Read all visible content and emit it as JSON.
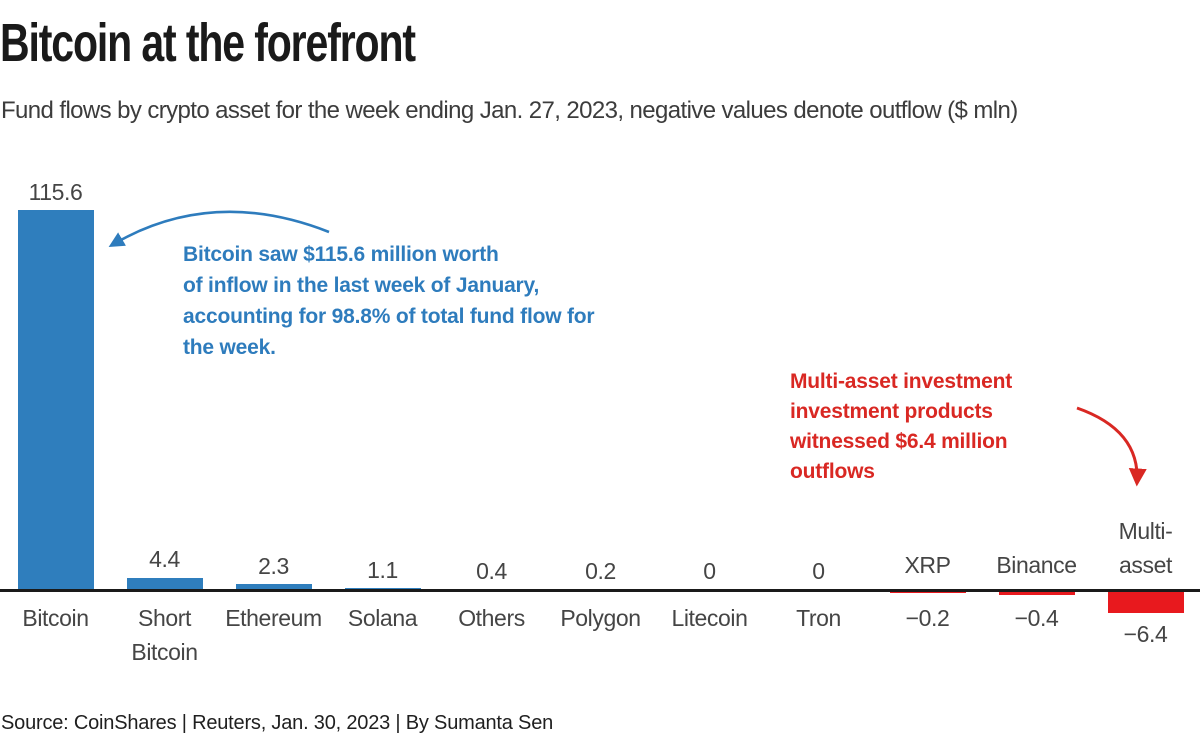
{
  "header": {
    "title": "Bitcoin at the forefront",
    "subtitle": "Fund flows by crypto asset for the week ending Jan. 27, 2023, negative values denote outflow ($ mln)"
  },
  "chart_data": {
    "type": "bar",
    "title": "Bitcoin at the forefront",
    "xlabel": "",
    "ylabel": "$ mln",
    "categories": [
      "Bitcoin",
      "Short Bitcoin",
      "Ethereum",
      "Solana",
      "Others",
      "Polygon",
      "Litecoin",
      "Tron",
      "XRP",
      "Binance",
      "Multi-asset"
    ],
    "values": [
      115.6,
      4.4,
      2.3,
      1.1,
      0.4,
      0.2,
      0,
      0,
      -0.2,
      -0.4,
      -6.4
    ],
    "value_labels": [
      "115.6",
      "4.4",
      "2.3",
      "1.1",
      "0.4",
      "0.2",
      "0",
      "0",
      "−0.2",
      "−0.4",
      "−6.4"
    ],
    "label_lines": [
      [
        "Bitcoin"
      ],
      [
        "Short",
        "Bitcoin"
      ],
      [
        "Ethereum"
      ],
      [
        "Solana"
      ],
      [
        "Others"
      ],
      [
        "Polygon"
      ],
      [
        "Litecoin"
      ],
      [
        "Tron"
      ],
      [
        "XRP"
      ],
      [
        "Binance"
      ],
      [
        "Multi-",
        "asset"
      ]
    ],
    "positive_color": "#2f7ebd",
    "negative_color": "#e8191e",
    "axis_color": "#1a1a1a",
    "label_color": "#454545",
    "grid": false,
    "legend": false,
    "ylim": [
      -6.4,
      115.6
    ]
  },
  "annotations": {
    "bitcoin": {
      "color": "#2e7cbd",
      "lines": [
        "Bitcoin saw $115.6 million worth",
        "of inflow in the last week of January,",
        "accounting for 98.8% of total fund flow for",
        "the week."
      ]
    },
    "multi_asset": {
      "color": "#d92823",
      "lines": [
        "Multi-asset investment",
        "investment products",
        "witnessed $6.4 million",
        "outflows"
      ]
    }
  },
  "footer": {
    "source": "Source: CoinShares | Reuters, Jan. 30, 2023 | By Sumanta Sen"
  }
}
